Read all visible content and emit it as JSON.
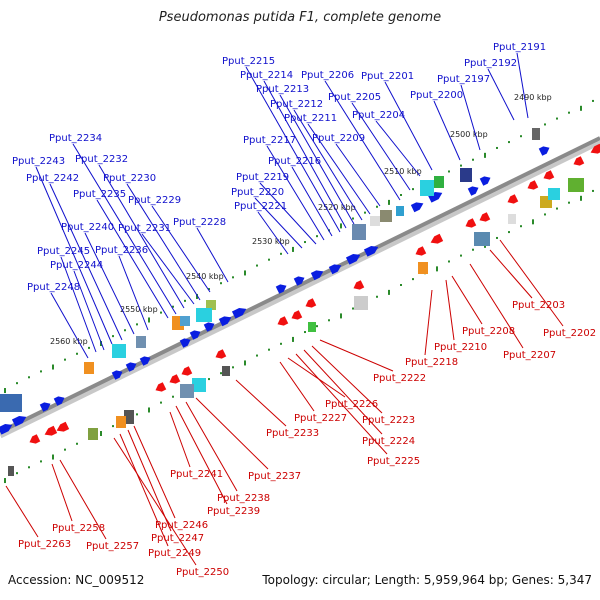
{
  "title": "Pseudomonas putida F1, complete genome",
  "accession": "Accession: NC_009512",
  "summary": "Topology: circular; Length: 5,959,964 bp; Genes: 5,347",
  "colors": {
    "backbone": "#8a8a8a",
    "forward_gene": "#0a1ee0",
    "reverse_gene": "#f01010",
    "forward_label": "#1010cc",
    "reverse_label": "#cc0000",
    "tick": "#2a8a2a",
    "scale_text": "#222222"
  },
  "scale_labels": [
    "2490 kbp",
    "2500 kbp",
    "2510 kbp",
    "2520 kbp",
    "2530 kbp",
    "2540 kbp",
    "2550 kbp",
    "2560 kbp"
  ],
  "forward_genes": [
    "Pput_2191",
    "Pput_2192",
    "Pput_2197",
    "Pput_2200",
    "Pput_2201",
    "Pput_2204",
    "Pput_2205",
    "Pput_2206",
    "Pput_2209",
    "Pput_2211",
    "Pput_2212",
    "Pput_2213",
    "Pput_2214",
    "Pput_2215",
    "Pput_2216",
    "Pput_2217",
    "Pput_2219",
    "Pput_2220",
    "Pput_2221",
    "Pput_2228",
    "Pput_2229",
    "Pput_2230",
    "Pput_2231",
    "Pput_2232",
    "Pput_2234",
    "Pput_2235",
    "Pput_2236",
    "Pput_2240",
    "Pput_2242",
    "Pput_2243",
    "Pput_2244",
    "Pput_2245",
    "Pput_2248"
  ],
  "reverse_genes": [
    "Pput_2202",
    "Pput_2203",
    "Pput_2207",
    "Pput_2208",
    "Pput_2210",
    "Pput_2218",
    "Pput_2222",
    "Pput_2223",
    "Pput_2224",
    "Pput_2225",
    "Pput_2226",
    "Pput_2227",
    "Pput_2233",
    "Pput_2237",
    "Pput_2238",
    "Pput_2239",
    "Pput_2241",
    "Pput_2246",
    "Pput_2247",
    "Pput_2249",
    "Pput_2250",
    "Pput_2257",
    "Pput_2258",
    "Pput_2263"
  ]
}
